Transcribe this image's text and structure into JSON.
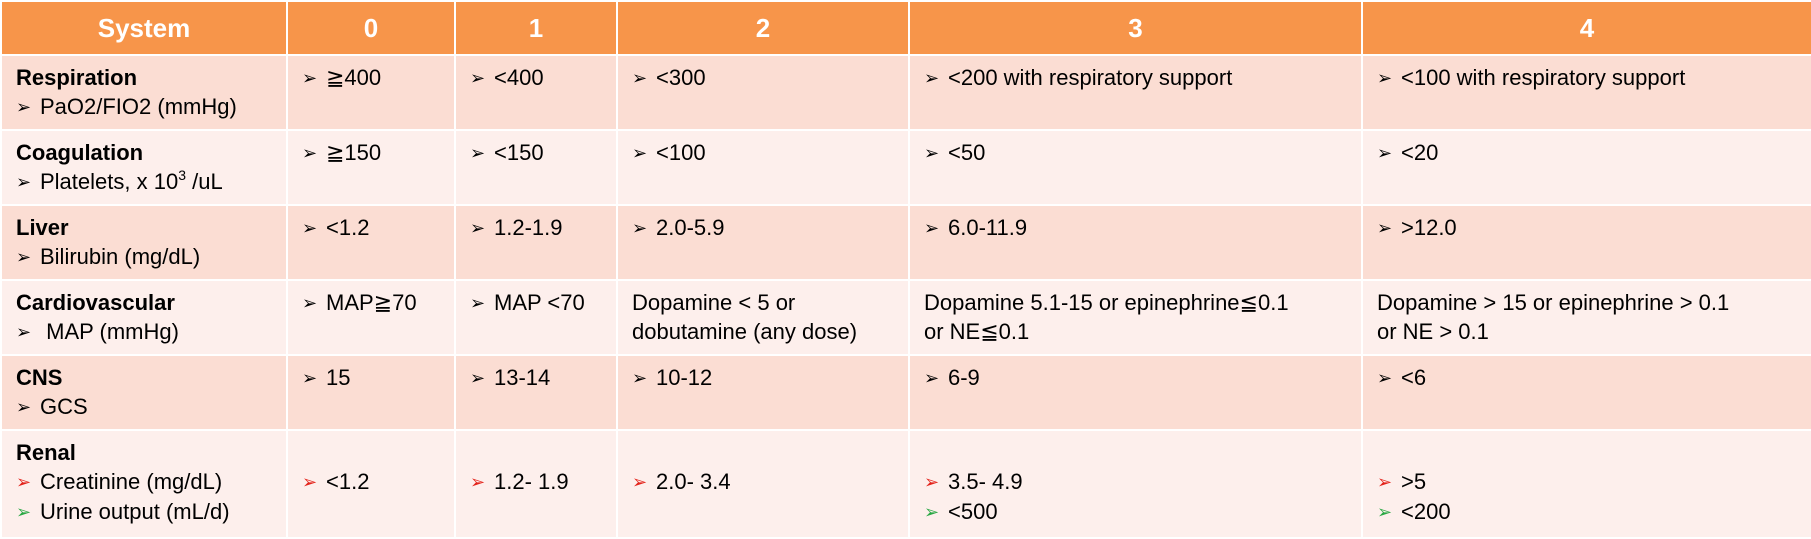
{
  "header": {
    "system": "System",
    "s0": "0",
    "s1": "1",
    "s2": "2",
    "s3": "3",
    "s4": "4"
  },
  "rows": [
    {
      "system": "Respiration",
      "sub": [
        {
          "text": "PaO2/FIO2 (mmHg)"
        }
      ],
      "s0": "≧400",
      "s1": "<400",
      "s2": "<300",
      "s3": "<200 with respiratory support",
      "s4": "<100 with respiratory support"
    },
    {
      "system": "Coagulation",
      "sub_pre": "Platelets, x 10",
      "sub_sup": "3",
      "sub_post": " /uL",
      "s0": "≧150",
      "s1": "<150",
      "s2": "<100",
      "s3": "<50",
      "s4": "<20"
    },
    {
      "system": "Liver",
      "sub": [
        {
          "text": "Bilirubin (mg/dL)"
        }
      ],
      "s0": "<1.2",
      "s1": "1.2-1.9",
      "s2": "2.0-5.9",
      "s3": "6.0-11.9",
      "s4": ">12.0"
    },
    {
      "system": "Cardiovascular",
      "sub": [
        {
          "text": " MAP (mmHg)"
        }
      ],
      "s0": "MAP≧70",
      "s1": "MAP <70",
      "s2_l1": "Dopamine < 5 or",
      "s2_l2": "dobutamine (any dose)",
      "s3_l1": "Dopamine 5.1-15 or epinephrine≦0.1",
      "s3_l2": "or NE≦0.1",
      "s4_l1": "Dopamine > 15 or epinephrine > 0.1",
      "s4_l2": "or NE > 0.1"
    },
    {
      "system": "CNS",
      "sub": [
        {
          "text": "GCS"
        }
      ],
      "s0": "15",
      "s1": "13-14",
      "s2": "10-12",
      "s3": "6-9",
      "s4": "<6"
    },
    {
      "system": "Renal",
      "sub": [
        {
          "text": "Creatinine (mg/dL)"
        },
        {
          "text": "Urine output (mL/d)"
        }
      ],
      "s0": "<1.2",
      "s1": "1.2- 1.9",
      "s2": "2.0- 3.4",
      "s3_creat": "3.5- 4.9",
      "s3_urine": "<500",
      "s4_creat": ">5",
      "s4_urine": "<200"
    }
  ],
  "bullet_icon": "arrowhead-bullet-icon",
  "colors": {
    "header_bg": "#f7954a",
    "row_dark": "#fbddd3",
    "row_light": "#fdefec",
    "creatinine_bullet": "#e3231b",
    "urine_bullet": "#2aa844"
  }
}
